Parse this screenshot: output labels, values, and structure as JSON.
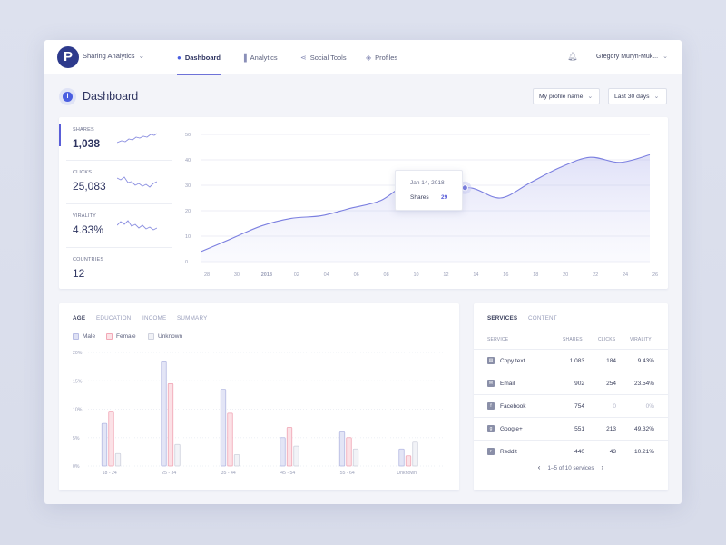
{
  "header": {
    "brand": "Sharing Analytics",
    "nav": [
      {
        "label": "Dashboard",
        "icon": "info-icon",
        "active": true
      },
      {
        "label": "Analytics",
        "icon": "bar-chart-icon",
        "active": false
      },
      {
        "label": "Social Tools",
        "icon": "share-icon",
        "active": false
      },
      {
        "label": "Profiles",
        "icon": "shield-icon",
        "active": false
      }
    ],
    "user": "Gregory Muryn-Muk..."
  },
  "page": {
    "title": "Dashboard",
    "profile_select": "My profile name",
    "range_select": "Last 30 days"
  },
  "metrics": [
    {
      "label": "SHARES",
      "value": "1,038",
      "selected": true
    },
    {
      "label": "CLICKS",
      "value": "25,083",
      "selected": false
    },
    {
      "label": "VIRALITY",
      "value": "4.83%",
      "selected": false
    },
    {
      "label": "COUNTRIES",
      "value": "12",
      "selected": false
    }
  ],
  "tooltip": {
    "date": "Jan 14, 2018",
    "label": "Shares",
    "value": "29"
  },
  "colors": {
    "accent": "#5a5ed8",
    "male": "#c9cdea",
    "female": "#f4c2cb",
    "unknown": "#e4e6ee"
  },
  "chart_data": [
    {
      "type": "area",
      "x": [
        "28",
        "30",
        "2018",
        "02",
        "04",
        "06",
        "08",
        "10",
        "12",
        "14",
        "16",
        "18",
        "20",
        "22",
        "24",
        "26"
      ],
      "values": [
        4,
        9,
        14,
        17,
        18,
        21,
        24,
        31,
        27,
        29,
        25,
        31,
        37,
        41,
        39,
        42
      ],
      "ylim": [
        0,
        50
      ],
      "yticks": [
        0,
        10,
        20,
        30,
        40,
        50
      ],
      "grid": true,
      "highlight": {
        "x": "14",
        "value": 29
      }
    },
    {
      "type": "bar",
      "tabs": [
        "AGE",
        "EDUCATION",
        "INCOME",
        "SUMMARY"
      ],
      "categories": [
        "18 - 24",
        "25 - 34",
        "35 - 44",
        "45 - 54",
        "55 - 64",
        "Unknown"
      ],
      "series": [
        {
          "name": "Male",
          "values": [
            7.5,
            18.5,
            13.5,
            5,
            6,
            3
          ]
        },
        {
          "name": "Female",
          "values": [
            9.5,
            14.5,
            9.3,
            6.8,
            5,
            1.8
          ]
        },
        {
          "name": "Unknown",
          "values": [
            2.2,
            3.8,
            2,
            3.5,
            3,
            4.2
          ]
        }
      ],
      "yticks": [
        "0%",
        "5%",
        "10%",
        "15%",
        "20%"
      ],
      "ylim": [
        0,
        20
      ],
      "legend": "top-left"
    }
  ],
  "services": {
    "tabs": [
      "SERVICES",
      "CONTENT"
    ],
    "columns": [
      "SERVICE",
      "SHARES",
      "CLICKS",
      "VIRALITY"
    ],
    "rows": [
      {
        "name": "Copy text",
        "icon": "copy-icon",
        "shares": "1,083",
        "clicks": "184",
        "virality": "9.43%"
      },
      {
        "name": "Email",
        "icon": "email-icon",
        "shares": "902",
        "clicks": "254",
        "virality": "23.54%"
      },
      {
        "name": "Facebook",
        "icon": "facebook-icon",
        "shares": "754",
        "clicks": "0",
        "virality": "0%"
      },
      {
        "name": "Google+",
        "icon": "google-plus-icon",
        "shares": "551",
        "clicks": "213",
        "virality": "49.32%"
      },
      {
        "name": "Reddit",
        "icon": "reddit-icon",
        "shares": "440",
        "clicks": "43",
        "virality": "10.21%"
      }
    ],
    "pager": "1–5 of 10 services"
  }
}
